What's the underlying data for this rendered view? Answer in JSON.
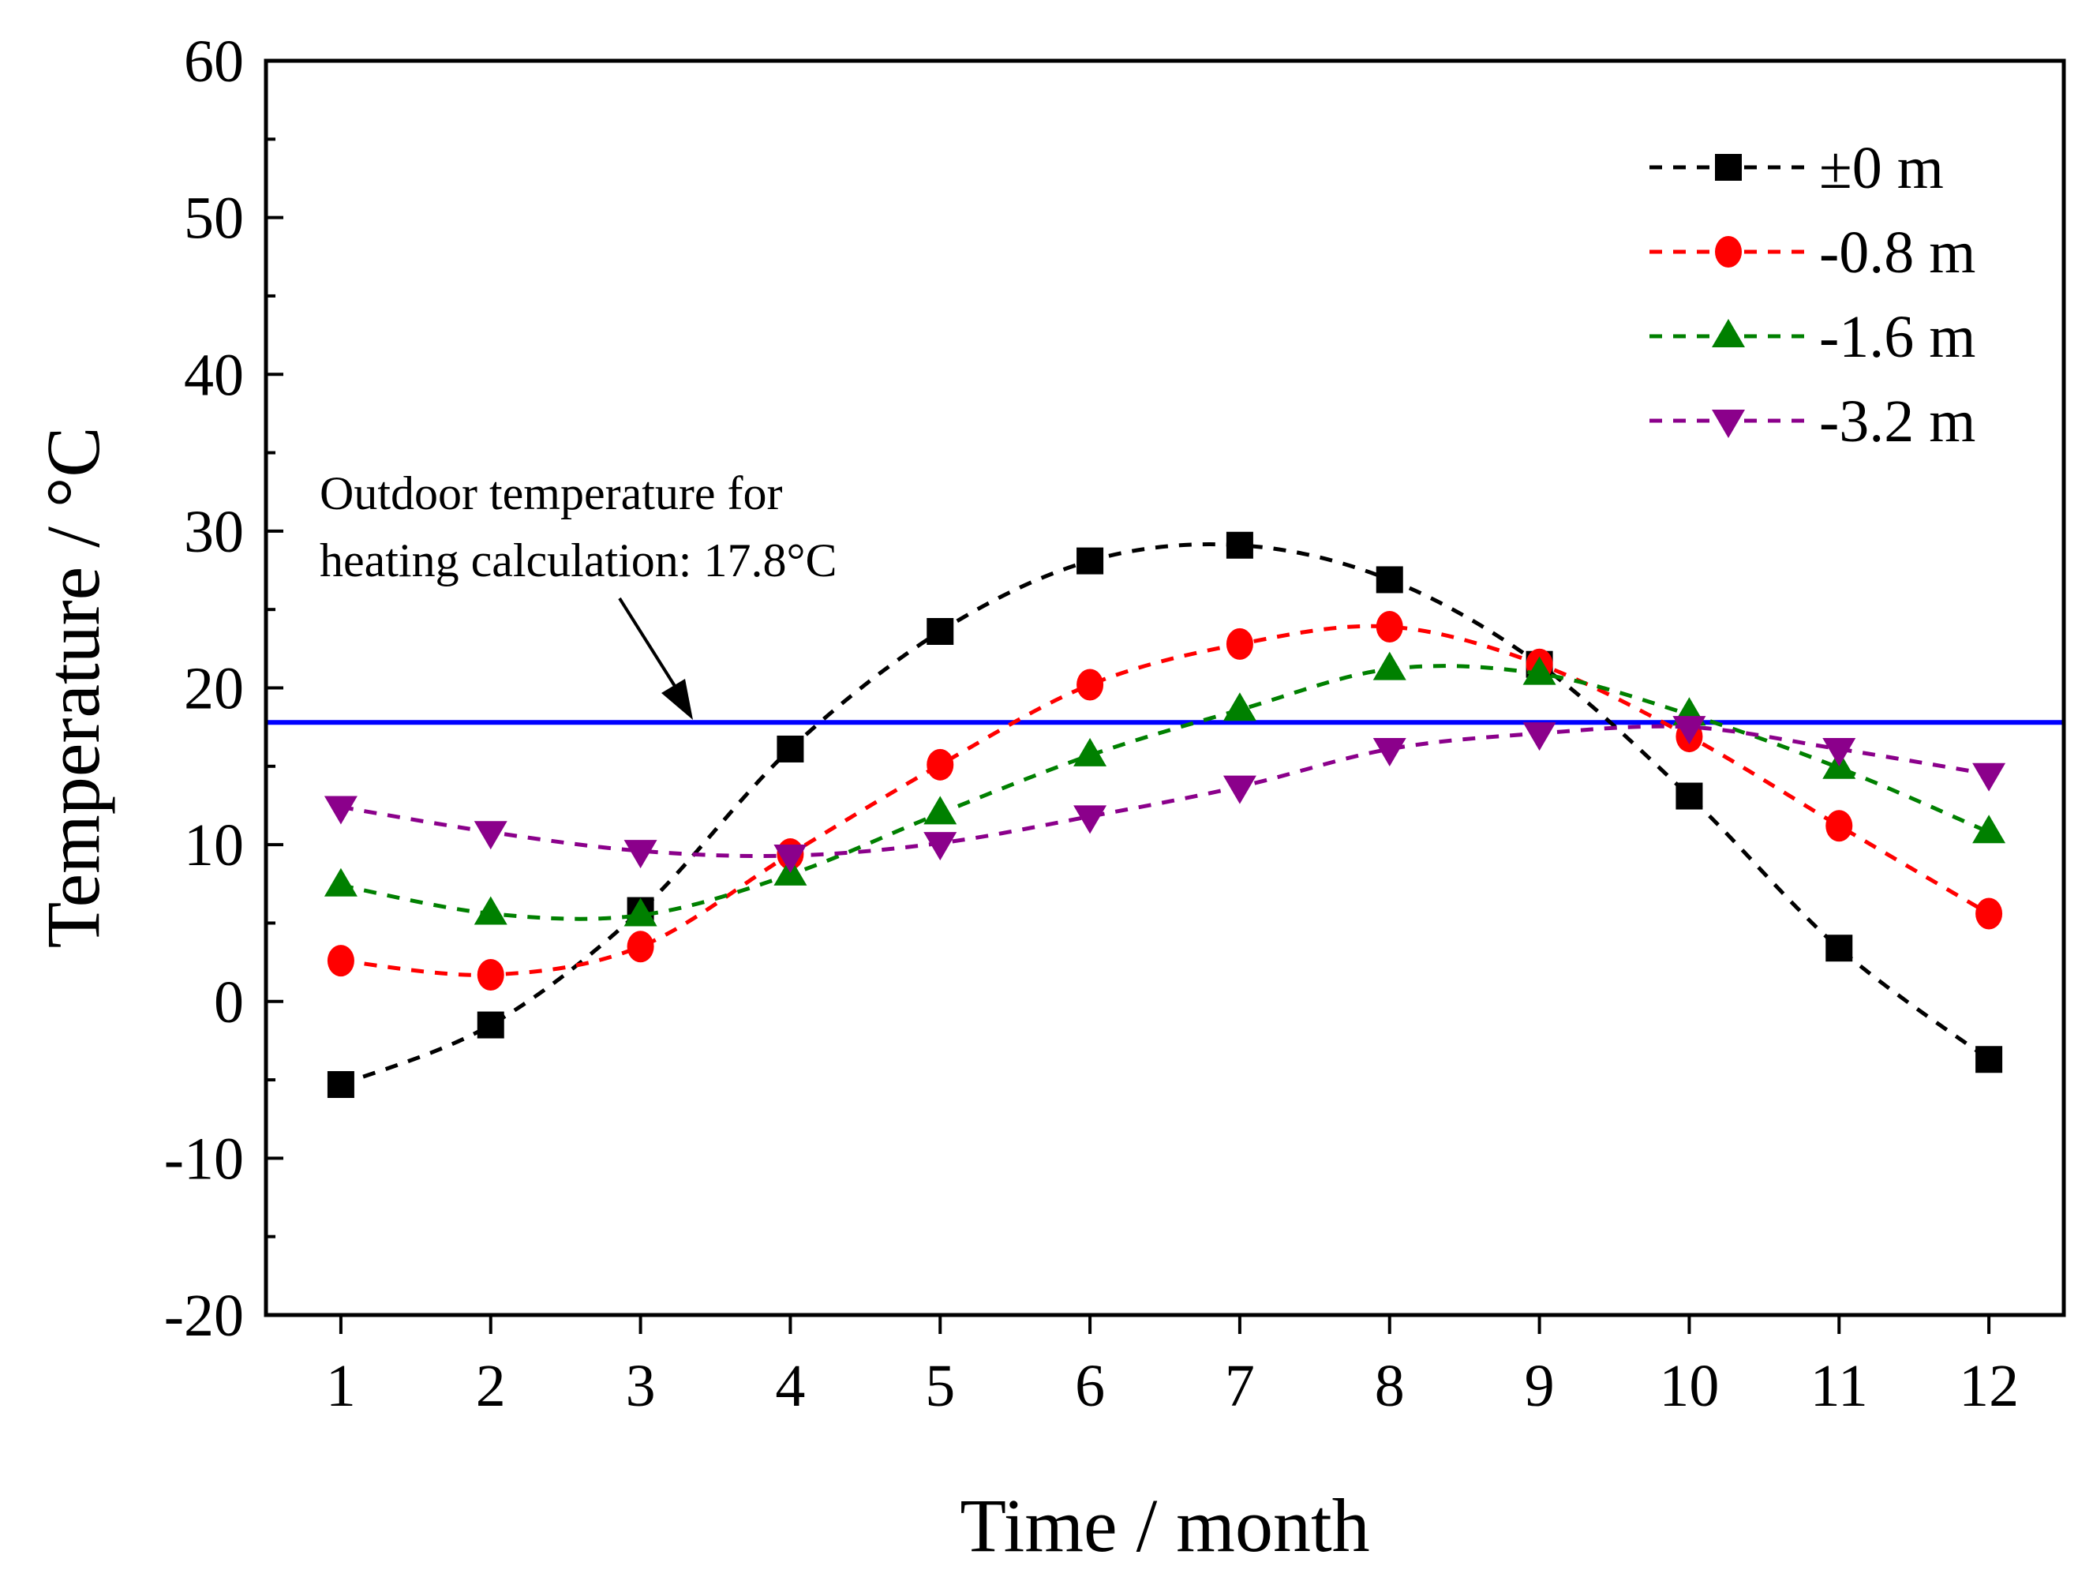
{
  "chart_data": {
    "type": "line",
    "title": "",
    "xlabel": "Time / month",
    "ylabel": "Temperature / °C",
    "x": [
      1,
      2,
      3,
      4,
      5,
      6,
      7,
      8,
      9,
      10,
      11,
      12
    ],
    "xticks": [
      "1",
      "2",
      "3",
      "4",
      "5",
      "6",
      "7",
      "8",
      "9",
      "10",
      "11",
      "12"
    ],
    "xlim": [
      0.5,
      12.5
    ],
    "ylim": [
      -20,
      60
    ],
    "yticks": [
      "-20",
      "-10",
      "0",
      "10",
      "20",
      "30",
      "40",
      "50",
      "60"
    ],
    "grid": false,
    "legend_position": "top-right",
    "series": [
      {
        "name": "±0 m",
        "color": "#000000",
        "marker": "square",
        "values": [
          -5.3,
          -1.5,
          5.8,
          16.1,
          23.6,
          28.1,
          29.1,
          26.9,
          21.5,
          13.1,
          3.4,
          -3.7
        ]
      },
      {
        "name": "-0.8 m",
        "color": "#ff0000",
        "marker": "circle",
        "values": [
          2.6,
          1.7,
          3.5,
          9.4,
          15.1,
          20.2,
          22.8,
          23.9,
          21.5,
          16.9,
          11.2,
          5.6
        ]
      },
      {
        "name": "-1.6 m",
        "color": "#008000",
        "marker": "triangle-up",
        "values": [
          7.4,
          5.6,
          5.5,
          8.1,
          12.0,
          15.7,
          18.6,
          21.2,
          20.9,
          18.3,
          14.9,
          10.8
        ]
      },
      {
        "name": "-3.2 m",
        "color": "#8b008b",
        "marker": "triangle-down",
        "values": [
          12.4,
          10.8,
          9.6,
          9.3,
          10.1,
          11.8,
          13.7,
          16.1,
          17.1,
          17.5,
          16.1,
          14.5
        ]
      }
    ],
    "reference_line": {
      "value": 17.8,
      "color": "#0000ff"
    },
    "annotations": [
      "Outdoor temperature for",
      "heating calculation: 17.8°C"
    ]
  }
}
